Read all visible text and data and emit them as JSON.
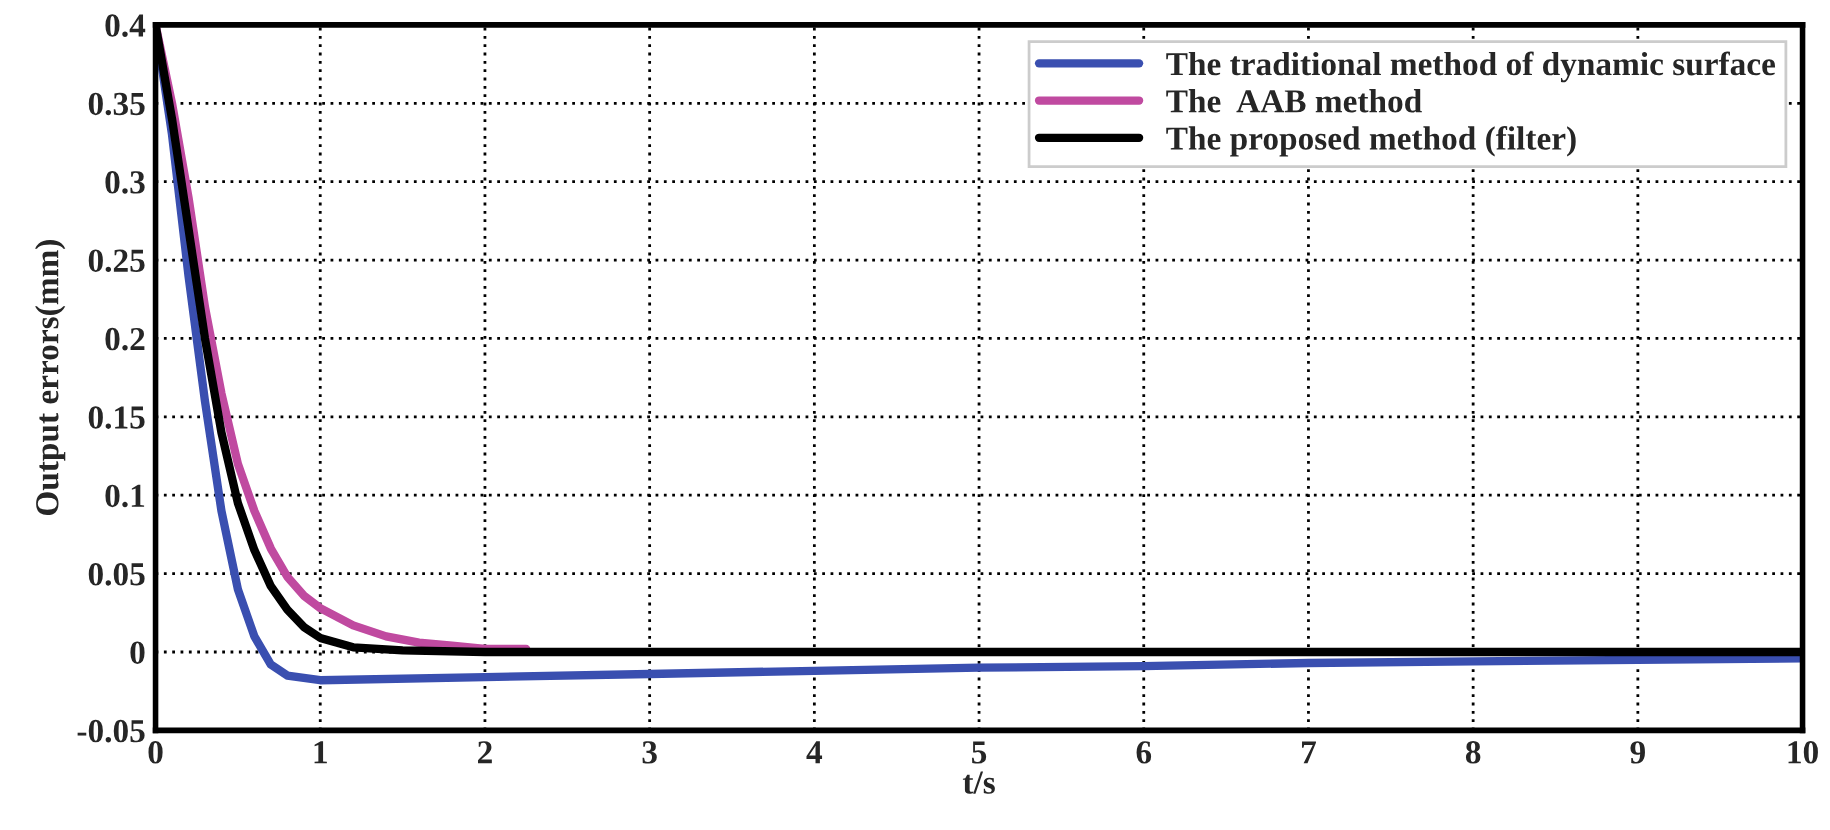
{
  "chart_data": {
    "type": "line",
    "xlabel": "t/s",
    "ylabel": "Output errors(mm)",
    "xlim": [
      0,
      10
    ],
    "ylim": [
      -0.05,
      0.4
    ],
    "xticks": [
      0,
      1,
      2,
      3,
      4,
      5,
      6,
      7,
      8,
      9,
      10
    ],
    "yticks": [
      -0.05,
      0,
      0.05,
      0.1,
      0.15,
      0.2,
      0.25,
      0.3,
      0.35,
      0.4
    ],
    "grid": true,
    "legend": "top right",
    "line_style": "solid",
    "marker": "none",
    "series": [
      {
        "name": "The traditional method of dynamic surface",
        "color": "#3a4fb0",
        "x": [
          0,
          0.1,
          0.2,
          0.3,
          0.4,
          0.5,
          0.6,
          0.7,
          0.8,
          1,
          2,
          3,
          4,
          5,
          6,
          7,
          8,
          9,
          10
        ],
        "values": [
          0.4,
          0.33,
          0.24,
          0.16,
          0.09,
          0.04,
          0.01,
          -0.008,
          -0.015,
          -0.018,
          -0.016,
          -0.014,
          -0.012,
          -0.01,
          -0.009,
          -0.007,
          -0.006,
          -0.005,
          -0.004
        ]
      },
      {
        "name": "The  AAB method",
        "color": "#c04aa0",
        "x": [
          0,
          0.1,
          0.2,
          0.3,
          0.4,
          0.5,
          0.6,
          0.7,
          0.8,
          0.9,
          1,
          1.2,
          1.4,
          1.6,
          1.8,
          2,
          2.25
        ],
        "values": [
          0.4,
          0.35,
          0.29,
          0.22,
          0.165,
          0.12,
          0.09,
          0.066,
          0.048,
          0.036,
          0.028,
          0.017,
          0.01,
          0.006,
          0.004,
          0.002,
          0.002
        ]
      },
      {
        "name": "The proposed method (filter)",
        "color": "#000000",
        "x": [
          0,
          0.1,
          0.2,
          0.3,
          0.4,
          0.5,
          0.6,
          0.7,
          0.8,
          0.9,
          1,
          1.2,
          1.5,
          2,
          10
        ],
        "values": [
          0.4,
          0.34,
          0.27,
          0.2,
          0.14,
          0.095,
          0.065,
          0.042,
          0.027,
          0.016,
          0.009,
          0.003,
          0.001,
          0,
          0
        ]
      }
    ]
  }
}
